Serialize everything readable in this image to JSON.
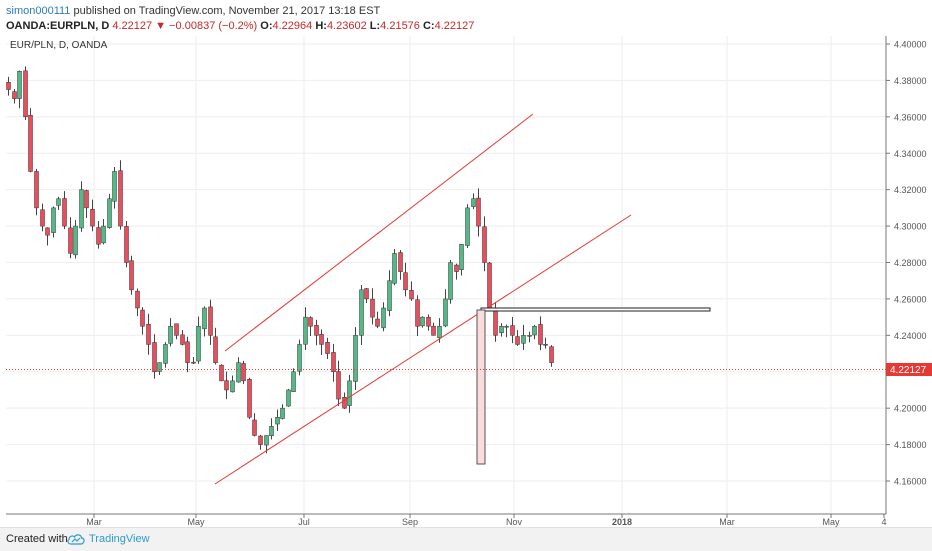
{
  "header": {
    "username": "simon000111",
    "published_text": "published on TradingView.com, November 21, 2017 13:18 EST"
  },
  "ohlc": {
    "symbol": "OANDA:EURPLN, D",
    "last": "4.22127",
    "change_arrow": "down",
    "change": "−0.00837 (−0.2%)",
    "o_label": "O:",
    "o": "4.22964",
    "h_label": "H:",
    "h": "4.23602",
    "l_label": "L:",
    "l": "4.21576",
    "c_label": "C:",
    "c": "4.22127"
  },
  "chart_data": {
    "type": "candlestick",
    "title": "EUR/PLN, D, OANDA",
    "ylim": [
      4.15,
      4.4
    ],
    "y_ticks": [
      "4.40000",
      "4.38000",
      "4.36000",
      "4.34000",
      "4.32000",
      "4.30000",
      "4.28000",
      "4.26000",
      "4.24000",
      "4.22000",
      "4.20000",
      "4.18000",
      "4.16000"
    ],
    "x_ticks": [
      "Mar",
      "May",
      "Jul",
      "Sep",
      "Nov",
      "2018",
      "Mar",
      "May",
      "4"
    ],
    "last_price_label": "4.22127",
    "last_price": 4.22127,
    "candle_colors": {
      "up": "#53b987",
      "down": "#eb4d5c"
    },
    "approx_closes": [
      4.375,
      4.37,
      4.385,
      4.36,
      4.33,
      4.31,
      4.3,
      4.295,
      4.31,
      4.315,
      4.3,
      4.285,
      4.3,
      4.32,
      4.31,
      4.3,
      4.29,
      4.3,
      4.315,
      4.33,
      4.3,
      4.28,
      4.265,
      4.255,
      4.245,
      4.235,
      4.22,
      4.225,
      4.235,
      4.245,
      4.24,
      4.235,
      4.225,
      4.225,
      4.245,
      4.255,
      4.24,
      4.225,
      4.215,
      4.21,
      4.215,
      4.225,
      4.215,
      4.195,
      4.185,
      4.18,
      4.185,
      4.19,
      4.195,
      4.2,
      4.21,
      4.22,
      4.235,
      4.25,
      4.245,
      4.24,
      4.235,
      4.23,
      4.22,
      4.205,
      4.2,
      4.215,
      4.24,
      4.265,
      4.26,
      4.25,
      4.245,
      4.255,
      4.27,
      4.285,
      4.275,
      4.265,
      4.26,
      4.245,
      4.25,
      4.245,
      4.24,
      4.245,
      4.26,
      4.28,
      4.275,
      4.29,
      4.31,
      4.315,
      4.3,
      4.28,
      4.255,
      4.24,
      4.245,
      4.245,
      4.24,
      4.235,
      4.24,
      4.24,
      4.245,
      4.235,
      4.235,
      4.225
    ],
    "channel_upper_line": {
      "x": [
        "May",
        "Oct"
      ],
      "y": [
        4.232,
        4.362
      ]
    },
    "channel_lower_line": {
      "x": [
        "May",
        "Dec"
      ],
      "y": [
        4.158,
        4.307
      ]
    },
    "resistance_box": {
      "y_top": 4.2545,
      "y_bottom": 4.253
    },
    "drop_box": {
      "y_top": 4.254,
      "y_bottom": 4.17
    },
    "grid": true,
    "colors": {
      "trendline": "#e53935",
      "last_price": "#e53935",
      "grid": "#eeeeee",
      "axis_text": "#555555"
    }
  },
  "footer": {
    "created_with": "Created with",
    "brand": "TradingView",
    "icon": "tradingview-cloud-icon"
  }
}
